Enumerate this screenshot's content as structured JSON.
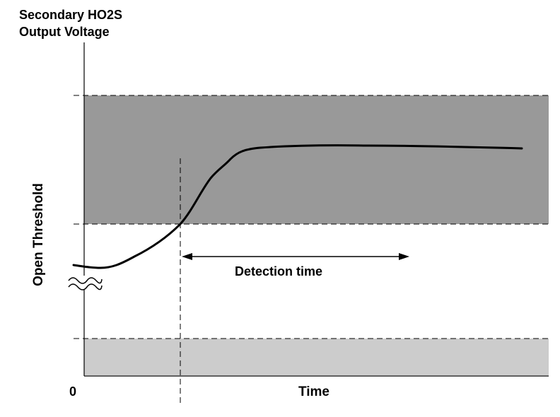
{
  "title_line1": "Secondary HO2S",
  "title_line2": "Output Voltage",
  "y_axis_label": "Open Threshold",
  "x_axis_label": "Time",
  "x_origin_label": "0",
  "annotation": "Detection time",
  "colors": {
    "dark_band": "#999999",
    "light_band": "#cccccc",
    "line": "#000000"
  }
}
